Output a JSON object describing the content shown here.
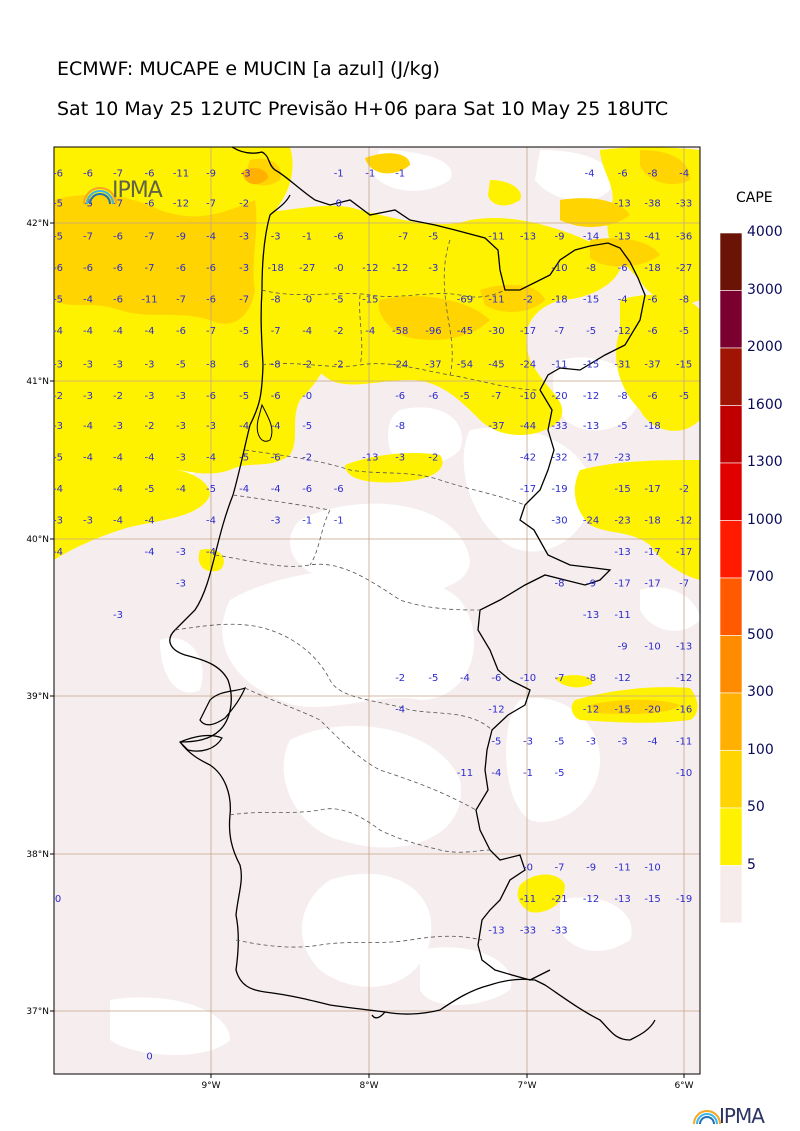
{
  "header": {
    "title": "ECMWF: MUCAPE e MUCIN [a azul] (J/kg)",
    "subtitle": "Sat 10 May 25 12UTC Previsão H+06 para Sat 10 May 25 18UTC"
  },
  "logo": {
    "text": "IPMA"
  },
  "colorbar": {
    "title": "CAPE",
    "levels": [
      "4000",
      "3000",
      "2000",
      "1600",
      "1300",
      "1000",
      "700",
      "500",
      "300",
      "100",
      "50",
      "5"
    ],
    "colors": [
      "#6b1306",
      "#7a0030",
      "#a01405",
      "#c00000",
      "#e00000",
      "#ff1a00",
      "#ff5a00",
      "#ff8c00",
      "#ffb000",
      "#ffd400",
      "#fff200",
      "#f6ecec"
    ]
  },
  "axes": {
    "lat_labels": [
      "42°N",
      "41°N",
      "40°N",
      "39°N",
      "38°N",
      "37°N"
    ],
    "lon_labels": [
      "9°W",
      "8°W",
      "7°W",
      "6°W"
    ]
  },
  "cin_values": [
    {
      "lon": -9.97,
      "lat": 42.32,
      "v": "-6"
    },
    {
      "lon": -9.78,
      "lat": 42.32,
      "v": "-6"
    },
    {
      "lon": -9.59,
      "lat": 42.32,
      "v": "-7"
    },
    {
      "lon": -9.39,
      "lat": 42.32,
      "v": "-6"
    },
    {
      "lon": -9.19,
      "lat": 42.32,
      "v": "-11"
    },
    {
      "lon": -9.0,
      "lat": 42.32,
      "v": "-9"
    },
    {
      "lon": -8.78,
      "lat": 42.32,
      "v": "-3"
    },
    {
      "lon": -8.19,
      "lat": 42.32,
      "v": "-1"
    },
    {
      "lon": -7.99,
      "lat": 42.32,
      "v": "-1"
    },
    {
      "lon": -7.8,
      "lat": 42.32,
      "v": "-1"
    },
    {
      "lon": -6.6,
      "lat": 42.32,
      "v": "-4"
    },
    {
      "lon": -6.39,
      "lat": 42.32,
      "v": "-6"
    },
    {
      "lon": -6.2,
      "lat": 42.32,
      "v": "-8"
    },
    {
      "lon": -6.0,
      "lat": 42.32,
      "v": "-4"
    },
    {
      "lon": -9.97,
      "lat": 42.13,
      "v": "-5"
    },
    {
      "lon": -9.78,
      "lat": 42.13,
      "v": "-5"
    },
    {
      "lon": -9.59,
      "lat": 42.13,
      "v": "-7"
    },
    {
      "lon": -9.39,
      "lat": 42.13,
      "v": "-6"
    },
    {
      "lon": -9.19,
      "lat": 42.13,
      "v": "-12"
    },
    {
      "lon": -9.0,
      "lat": 42.13,
      "v": "-7"
    },
    {
      "lon": -8.79,
      "lat": 42.13,
      "v": "-2"
    },
    {
      "lon": -8.19,
      "lat": 42.13,
      "v": "0"
    },
    {
      "lon": -6.39,
      "lat": 42.13,
      "v": "-13"
    },
    {
      "lon": -6.2,
      "lat": 42.13,
      "v": "-38"
    },
    {
      "lon": -6.0,
      "lat": 42.13,
      "v": "-33"
    },
    {
      "lon": -9.97,
      "lat": 41.92,
      "v": "-5"
    },
    {
      "lon": -9.78,
      "lat": 41.92,
      "v": "-7"
    },
    {
      "lon": -9.59,
      "lat": 41.92,
      "v": "-6"
    },
    {
      "lon": -9.39,
      "lat": 41.92,
      "v": "-7"
    },
    {
      "lon": -9.19,
      "lat": 41.92,
      "v": "-9"
    },
    {
      "lon": -9.0,
      "lat": 41.92,
      "v": "-4"
    },
    {
      "lon": -8.79,
      "lat": 41.92,
      "v": "-3"
    },
    {
      "lon": -8.59,
      "lat": 41.92,
      "v": "-3"
    },
    {
      "lon": -8.39,
      "lat": 41.92,
      "v": "-1"
    },
    {
      "lon": -8.19,
      "lat": 41.92,
      "v": "-6"
    },
    {
      "lon": -7.78,
      "lat": 41.92,
      "v": "-7"
    },
    {
      "lon": -7.59,
      "lat": 41.92,
      "v": "-5"
    },
    {
      "lon": -7.19,
      "lat": 41.92,
      "v": "-11"
    },
    {
      "lon": -6.99,
      "lat": 41.92,
      "v": "-13"
    },
    {
      "lon": -6.79,
      "lat": 41.92,
      "v": "-9"
    },
    {
      "lon": -6.59,
      "lat": 41.92,
      "v": "-14"
    },
    {
      "lon": -6.39,
      "lat": 41.92,
      "v": "-13"
    },
    {
      "lon": -6.2,
      "lat": 41.92,
      "v": "-41"
    },
    {
      "lon": -6.0,
      "lat": 41.92,
      "v": "-36"
    },
    {
      "lon": -9.97,
      "lat": 41.72,
      "v": "-6"
    },
    {
      "lon": -9.78,
      "lat": 41.72,
      "v": "-6"
    },
    {
      "lon": -9.59,
      "lat": 41.72,
      "v": "-6"
    },
    {
      "lon": -9.39,
      "lat": 41.72,
      "v": "-7"
    },
    {
      "lon": -9.19,
      "lat": 41.72,
      "v": "-6"
    },
    {
      "lon": -9.0,
      "lat": 41.72,
      "v": "-6"
    },
    {
      "lon": -8.79,
      "lat": 41.72,
      "v": "-3"
    },
    {
      "lon": -8.59,
      "lat": 41.72,
      "v": "-18"
    },
    {
      "lon": -8.39,
      "lat": 41.72,
      "v": "-27"
    },
    {
      "lon": -8.19,
      "lat": 41.72,
      "v": "-0"
    },
    {
      "lon": -7.99,
      "lat": 41.72,
      "v": "-12"
    },
    {
      "lon": -7.8,
      "lat": 41.72,
      "v": "-12"
    },
    {
      "lon": -7.59,
      "lat": 41.72,
      "v": "-3"
    },
    {
      "lon": -6.79,
      "lat": 41.72,
      "v": "-10"
    },
    {
      "lon": -6.59,
      "lat": 41.72,
      "v": "-8"
    },
    {
      "lon": -6.39,
      "lat": 41.72,
      "v": "-6"
    },
    {
      "lon": -6.2,
      "lat": 41.72,
      "v": "-18"
    },
    {
      "lon": -6.0,
      "lat": 41.72,
      "v": "-27"
    },
    {
      "lon": -9.97,
      "lat": 41.52,
      "v": "-5"
    },
    {
      "lon": -9.78,
      "lat": 41.52,
      "v": "-4"
    },
    {
      "lon": -9.59,
      "lat": 41.52,
      "v": "-6"
    },
    {
      "lon": -9.39,
      "lat": 41.52,
      "v": "-11"
    },
    {
      "lon": -9.19,
      "lat": 41.52,
      "v": "-7"
    },
    {
      "lon": -9.0,
      "lat": 41.52,
      "v": "-6"
    },
    {
      "lon": -8.79,
      "lat": 41.52,
      "v": "-7"
    },
    {
      "lon": -8.59,
      "lat": 41.52,
      "v": "-8"
    },
    {
      "lon": -8.39,
      "lat": 41.52,
      "v": "-0"
    },
    {
      "lon": -8.19,
      "lat": 41.52,
      "v": "-5"
    },
    {
      "lon": -7.99,
      "lat": 41.52,
      "v": "-15"
    },
    {
      "lon": -7.39,
      "lat": 41.52,
      "v": "-69"
    },
    {
      "lon": -7.19,
      "lat": 41.52,
      "v": "-11"
    },
    {
      "lon": -6.99,
      "lat": 41.52,
      "v": "-2"
    },
    {
      "lon": -6.79,
      "lat": 41.52,
      "v": "-18"
    },
    {
      "lon": -6.59,
      "lat": 41.52,
      "v": "-15"
    },
    {
      "lon": -6.39,
      "lat": 41.52,
      "v": "-4"
    },
    {
      "lon": -6.2,
      "lat": 41.52,
      "v": "-6"
    },
    {
      "lon": -6.0,
      "lat": 41.52,
      "v": "-8"
    },
    {
      "lon": -9.97,
      "lat": 41.32,
      "v": "-4"
    },
    {
      "lon": -9.78,
      "lat": 41.32,
      "v": "-4"
    },
    {
      "lon": -9.59,
      "lat": 41.32,
      "v": "-4"
    },
    {
      "lon": -9.39,
      "lat": 41.32,
      "v": "-4"
    },
    {
      "lon": -9.19,
      "lat": 41.32,
      "v": "-6"
    },
    {
      "lon": -9.0,
      "lat": 41.32,
      "v": "-7"
    },
    {
      "lon": -8.79,
      "lat": 41.32,
      "v": "-5"
    },
    {
      "lon": -8.59,
      "lat": 41.32,
      "v": "-7"
    },
    {
      "lon": -8.39,
      "lat": 41.32,
      "v": "-4"
    },
    {
      "lon": -8.19,
      "lat": 41.32,
      "v": "-2"
    },
    {
      "lon": -7.99,
      "lat": 41.32,
      "v": "-4"
    },
    {
      "lon": -7.8,
      "lat": 41.32,
      "v": "-58"
    },
    {
      "lon": -7.59,
      "lat": 41.32,
      "v": "-96"
    },
    {
      "lon": -7.39,
      "lat": 41.32,
      "v": "-45"
    },
    {
      "lon": -7.19,
      "lat": 41.32,
      "v": "-30"
    },
    {
      "lon": -6.99,
      "lat": 41.32,
      "v": "-17"
    },
    {
      "lon": -6.79,
      "lat": 41.32,
      "v": "-7"
    },
    {
      "lon": -6.59,
      "lat": 41.32,
      "v": "-5"
    },
    {
      "lon": -6.39,
      "lat": 41.32,
      "v": "-12"
    },
    {
      "lon": -6.2,
      "lat": 41.32,
      "v": "-6"
    },
    {
      "lon": -6.0,
      "lat": 41.32,
      "v": "-5"
    },
    {
      "lon": -9.97,
      "lat": 41.11,
      "v": "-3"
    },
    {
      "lon": -9.78,
      "lat": 41.11,
      "v": "-3"
    },
    {
      "lon": -9.59,
      "lat": 41.11,
      "v": "-3"
    },
    {
      "lon": -9.39,
      "lat": 41.11,
      "v": "-3"
    },
    {
      "lon": -9.19,
      "lat": 41.11,
      "v": "-5"
    },
    {
      "lon": -9.0,
      "lat": 41.11,
      "v": "-8"
    },
    {
      "lon": -8.79,
      "lat": 41.11,
      "v": "-6"
    },
    {
      "lon": -8.59,
      "lat": 41.11,
      "v": "-8"
    },
    {
      "lon": -8.39,
      "lat": 41.11,
      "v": "-2"
    },
    {
      "lon": -8.19,
      "lat": 41.11,
      "v": "-2"
    },
    {
      "lon": -7.8,
      "lat": 41.11,
      "v": "-24"
    },
    {
      "lon": -7.59,
      "lat": 41.11,
      "v": "-37"
    },
    {
      "lon": -7.39,
      "lat": 41.11,
      "v": "-54"
    },
    {
      "lon": -7.19,
      "lat": 41.11,
      "v": "-45"
    },
    {
      "lon": -6.99,
      "lat": 41.11,
      "v": "-24"
    },
    {
      "lon": -6.79,
      "lat": 41.11,
      "v": "-11"
    },
    {
      "lon": -6.59,
      "lat": 41.11,
      "v": "-15"
    },
    {
      "lon": -6.39,
      "lat": 41.11,
      "v": "-31"
    },
    {
      "lon": -6.2,
      "lat": 41.11,
      "v": "-37"
    },
    {
      "lon": -6.0,
      "lat": 41.11,
      "v": "-15"
    },
    {
      "lon": -9.97,
      "lat": 40.91,
      "v": "-2"
    },
    {
      "lon": -9.78,
      "lat": 40.91,
      "v": "-3"
    },
    {
      "lon": -9.59,
      "lat": 40.91,
      "v": "-2"
    },
    {
      "lon": -9.39,
      "lat": 40.91,
      "v": "-3"
    },
    {
      "lon": -9.19,
      "lat": 40.91,
      "v": "-3"
    },
    {
      "lon": -9.0,
      "lat": 40.91,
      "v": "-6"
    },
    {
      "lon": -8.79,
      "lat": 40.91,
      "v": "-5"
    },
    {
      "lon": -8.59,
      "lat": 40.91,
      "v": "-6"
    },
    {
      "lon": -8.39,
      "lat": 40.91,
      "v": "-0"
    },
    {
      "lon": -7.8,
      "lat": 40.91,
      "v": "-6"
    },
    {
      "lon": -7.59,
      "lat": 40.91,
      "v": "-6"
    },
    {
      "lon": -7.39,
      "lat": 40.91,
      "v": "-5"
    },
    {
      "lon": -7.19,
      "lat": 40.91,
      "v": "-7"
    },
    {
      "lon": -6.99,
      "lat": 40.91,
      "v": "-10"
    },
    {
      "lon": -6.79,
      "lat": 40.91,
      "v": "-20"
    },
    {
      "lon": -6.59,
      "lat": 40.91,
      "v": "-12"
    },
    {
      "lon": -6.39,
      "lat": 40.91,
      "v": "-8"
    },
    {
      "lon": -6.2,
      "lat": 40.91,
      "v": "-6"
    },
    {
      "lon": -6.0,
      "lat": 40.91,
      "v": "-5"
    },
    {
      "lon": -9.97,
      "lat": 40.72,
      "v": "-3"
    },
    {
      "lon": -9.78,
      "lat": 40.72,
      "v": "-4"
    },
    {
      "lon": -9.59,
      "lat": 40.72,
      "v": "-3"
    },
    {
      "lon": -9.39,
      "lat": 40.72,
      "v": "-2"
    },
    {
      "lon": -9.19,
      "lat": 40.72,
      "v": "-3"
    },
    {
      "lon": -9.0,
      "lat": 40.72,
      "v": "-3"
    },
    {
      "lon": -8.79,
      "lat": 40.72,
      "v": "-4"
    },
    {
      "lon": -8.59,
      "lat": 40.72,
      "v": "-4"
    },
    {
      "lon": -8.39,
      "lat": 40.72,
      "v": "-5"
    },
    {
      "lon": -7.8,
      "lat": 40.72,
      "v": "-8"
    },
    {
      "lon": -7.19,
      "lat": 40.72,
      "v": "-37"
    },
    {
      "lon": -6.99,
      "lat": 40.72,
      "v": "-44"
    },
    {
      "lon": -6.79,
      "lat": 40.72,
      "v": "-33"
    },
    {
      "lon": -6.59,
      "lat": 40.72,
      "v": "-13"
    },
    {
      "lon": -6.39,
      "lat": 40.72,
      "v": "-5"
    },
    {
      "lon": -6.2,
      "lat": 40.72,
      "v": "-18"
    },
    {
      "lon": -9.97,
      "lat": 40.52,
      "v": "-5"
    },
    {
      "lon": -9.78,
      "lat": 40.52,
      "v": "-4"
    },
    {
      "lon": -9.59,
      "lat": 40.52,
      "v": "-4"
    },
    {
      "lon": -9.39,
      "lat": 40.52,
      "v": "-4"
    },
    {
      "lon": -9.19,
      "lat": 40.52,
      "v": "-3"
    },
    {
      "lon": -9.0,
      "lat": 40.52,
      "v": "-4"
    },
    {
      "lon": -8.79,
      "lat": 40.52,
      "v": "-5"
    },
    {
      "lon": -8.59,
      "lat": 40.52,
      "v": "-6"
    },
    {
      "lon": -8.39,
      "lat": 40.52,
      "v": "-2"
    },
    {
      "lon": -7.99,
      "lat": 40.52,
      "v": "-13"
    },
    {
      "lon": -7.8,
      "lat": 40.52,
      "v": "-3"
    },
    {
      "lon": -7.59,
      "lat": 40.52,
      "v": "-2"
    },
    {
      "lon": -6.99,
      "lat": 40.52,
      "v": "-42"
    },
    {
      "lon": -6.79,
      "lat": 40.52,
      "v": "-32"
    },
    {
      "lon": -6.59,
      "lat": 40.52,
      "v": "-17"
    },
    {
      "lon": -6.39,
      "lat": 40.52,
      "v": "-23"
    },
    {
      "lon": -9.97,
      "lat": 40.32,
      "v": "-4"
    },
    {
      "lon": -9.59,
      "lat": 40.32,
      "v": "-4"
    },
    {
      "lon": -9.39,
      "lat": 40.32,
      "v": "-5"
    },
    {
      "lon": -9.19,
      "lat": 40.32,
      "v": "-4"
    },
    {
      "lon": -9.0,
      "lat": 40.32,
      "v": "-5"
    },
    {
      "lon": -8.79,
      "lat": 40.32,
      "v": "-4"
    },
    {
      "lon": -8.59,
      "lat": 40.32,
      "v": "-4"
    },
    {
      "lon": -8.39,
      "lat": 40.32,
      "v": "-6"
    },
    {
      "lon": -8.19,
      "lat": 40.32,
      "v": "-6"
    },
    {
      "lon": -6.99,
      "lat": 40.32,
      "v": "-17"
    },
    {
      "lon": -6.79,
      "lat": 40.32,
      "v": "-19"
    },
    {
      "lon": -6.39,
      "lat": 40.32,
      "v": "-15"
    },
    {
      "lon": -6.2,
      "lat": 40.32,
      "v": "-17"
    },
    {
      "lon": -6.0,
      "lat": 40.32,
      "v": "-2"
    },
    {
      "lon": -9.97,
      "lat": 40.12,
      "v": "-3"
    },
    {
      "lon": -9.78,
      "lat": 40.12,
      "v": "-3"
    },
    {
      "lon": -9.59,
      "lat": 40.12,
      "v": "-4"
    },
    {
      "lon": -9.39,
      "lat": 40.12,
      "v": "-4"
    },
    {
      "lon": -9.0,
      "lat": 40.12,
      "v": "-4"
    },
    {
      "lon": -8.59,
      "lat": 40.12,
      "v": "-3"
    },
    {
      "lon": -8.39,
      "lat": 40.12,
      "v": "-1"
    },
    {
      "lon": -8.19,
      "lat": 40.12,
      "v": "-1"
    },
    {
      "lon": -6.79,
      "lat": 40.12,
      "v": "-30"
    },
    {
      "lon": -6.59,
      "lat": 40.12,
      "v": "-24"
    },
    {
      "lon": -6.39,
      "lat": 40.12,
      "v": "-23"
    },
    {
      "lon": -6.2,
      "lat": 40.12,
      "v": "-18"
    },
    {
      "lon": -6.0,
      "lat": 40.12,
      "v": "-12"
    },
    {
      "lon": -9.97,
      "lat": 39.92,
      "v": "-4"
    },
    {
      "lon": -9.39,
      "lat": 39.92,
      "v": "-4"
    },
    {
      "lon": -9.19,
      "lat": 39.92,
      "v": "-3"
    },
    {
      "lon": -9.0,
      "lat": 39.92,
      "v": "-4"
    },
    {
      "lon": -6.39,
      "lat": 39.92,
      "v": "-13"
    },
    {
      "lon": -6.2,
      "lat": 39.92,
      "v": "-17"
    },
    {
      "lon": -6.0,
      "lat": 39.92,
      "v": "-17"
    },
    {
      "lon": -9.19,
      "lat": 39.72,
      "v": "-3"
    },
    {
      "lon": -6.79,
      "lat": 39.72,
      "v": "-8"
    },
    {
      "lon": -6.59,
      "lat": 39.72,
      "v": "-9"
    },
    {
      "lon": -6.39,
      "lat": 39.72,
      "v": "-17"
    },
    {
      "lon": -6.2,
      "lat": 39.72,
      "v": "-17"
    },
    {
      "lon": -6.0,
      "lat": 39.72,
      "v": "-7"
    },
    {
      "lon": -9.59,
      "lat": 39.52,
      "v": "-3"
    },
    {
      "lon": -6.59,
      "lat": 39.52,
      "v": "-13"
    },
    {
      "lon": -6.39,
      "lat": 39.52,
      "v": "-11"
    },
    {
      "lon": -6.39,
      "lat": 39.32,
      "v": "-9"
    },
    {
      "lon": -6.2,
      "lat": 39.32,
      "v": "-10"
    },
    {
      "lon": -6.0,
      "lat": 39.32,
      "v": "-13"
    },
    {
      "lon": -7.8,
      "lat": 39.12,
      "v": "-2"
    },
    {
      "lon": -7.59,
      "lat": 39.12,
      "v": "-5"
    },
    {
      "lon": -7.39,
      "lat": 39.12,
      "v": "-4"
    },
    {
      "lon": -7.19,
      "lat": 39.12,
      "v": "-6"
    },
    {
      "lon": -6.99,
      "lat": 39.12,
      "v": "-10"
    },
    {
      "lon": -6.79,
      "lat": 39.12,
      "v": "-7"
    },
    {
      "lon": -6.59,
      "lat": 39.12,
      "v": "-8"
    },
    {
      "lon": -6.39,
      "lat": 39.12,
      "v": "-12"
    },
    {
      "lon": -6.0,
      "lat": 39.12,
      "v": "-12"
    },
    {
      "lon": -7.8,
      "lat": 38.92,
      "v": "-4"
    },
    {
      "lon": -7.19,
      "lat": 38.92,
      "v": "-12"
    },
    {
      "lon": -6.59,
      "lat": 38.92,
      "v": "-12"
    },
    {
      "lon": -6.39,
      "lat": 38.92,
      "v": "-15"
    },
    {
      "lon": -6.2,
      "lat": 38.92,
      "v": "-20"
    },
    {
      "lon": -6.0,
      "lat": 38.92,
      "v": "-16"
    },
    {
      "lon": -7.19,
      "lat": 38.72,
      "v": "-5"
    },
    {
      "lon": -6.99,
      "lat": 38.72,
      "v": "-3"
    },
    {
      "lon": -6.79,
      "lat": 38.72,
      "v": "-5"
    },
    {
      "lon": -6.59,
      "lat": 38.72,
      "v": "-3"
    },
    {
      "lon": -6.39,
      "lat": 38.72,
      "v": "-3"
    },
    {
      "lon": -6.2,
      "lat": 38.72,
      "v": "-4"
    },
    {
      "lon": -6.0,
      "lat": 38.72,
      "v": "-11"
    },
    {
      "lon": -7.39,
      "lat": 38.52,
      "v": "-11"
    },
    {
      "lon": -7.19,
      "lat": 38.52,
      "v": "-4"
    },
    {
      "lon": -6.99,
      "lat": 38.52,
      "v": "-1"
    },
    {
      "lon": -6.79,
      "lat": 38.52,
      "v": "-5"
    },
    {
      "lon": -6.0,
      "lat": 38.52,
      "v": "-10"
    },
    {
      "lon": -6.99,
      "lat": 37.92,
      "v": "-0"
    },
    {
      "lon": -6.79,
      "lat": 37.92,
      "v": "-7"
    },
    {
      "lon": -6.59,
      "lat": 37.92,
      "v": "-9"
    },
    {
      "lon": -6.39,
      "lat": 37.92,
      "v": "-11"
    },
    {
      "lon": -6.2,
      "lat": 37.92,
      "v": "-10"
    },
    {
      "lon": -9.97,
      "lat": 37.72,
      "v": "0"
    },
    {
      "lon": -6.99,
      "lat": 37.72,
      "v": "-11"
    },
    {
      "lon": -6.79,
      "lat": 37.72,
      "v": "-21"
    },
    {
      "lon": -6.59,
      "lat": 37.72,
      "v": "-12"
    },
    {
      "lon": -6.39,
      "lat": 37.72,
      "v": "-13"
    },
    {
      "lon": -6.2,
      "lat": 37.72,
      "v": "-15"
    },
    {
      "lon": -6.0,
      "lat": 37.72,
      "v": "-19"
    },
    {
      "lon": -7.19,
      "lat": 37.52,
      "v": "-13"
    },
    {
      "lon": -6.99,
      "lat": 37.52,
      "v": "-33"
    },
    {
      "lon": -6.79,
      "lat": 37.52,
      "v": "-33"
    },
    {
      "lon": -9.39,
      "lat": 36.72,
      "v": "0"
    }
  ]
}
